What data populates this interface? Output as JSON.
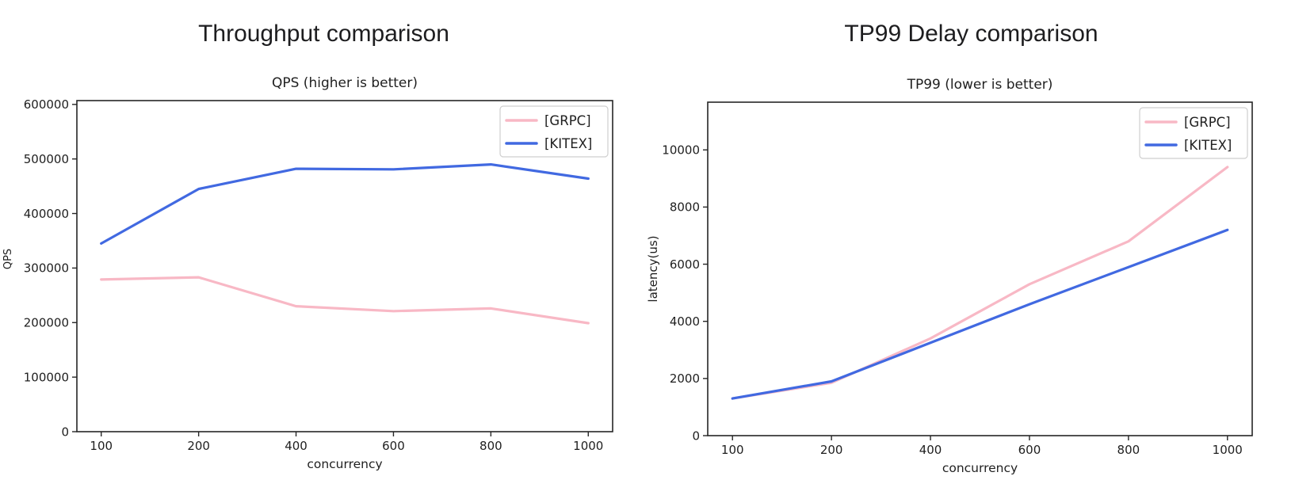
{
  "chart_data": [
    {
      "type": "line",
      "suptitle": "Throughput comparison",
      "title": "QPS (higher is better)",
      "xlabel": "concurrency",
      "ylabel": "QPS",
      "categories": [
        100,
        200,
        400,
        600,
        800,
        1000
      ],
      "xtick_labels": [
        "100",
        "200",
        "400",
        "600",
        "800",
        "1000"
      ],
      "yticks": [
        0,
        100000,
        200000,
        300000,
        400000,
        500000,
        600000
      ],
      "ytick_labels": [
        "0",
        "100000",
        "200000",
        "300000",
        "400000",
        "500000",
        "600000"
      ],
      "ylim": [
        0,
        607000
      ],
      "grid": false,
      "legend_position": "upper right",
      "series": [
        {
          "name": "[GRPC]",
          "color": "#F8B8C5",
          "values": [
            279000,
            283000,
            230000,
            221000,
            226000,
            199000
          ]
        },
        {
          "name": "[KITEX]",
          "color": "#4169E1",
          "values": [
            345000,
            445000,
            482000,
            481000,
            490000,
            464000
          ]
        }
      ]
    },
    {
      "type": "line",
      "suptitle": "TP99 Delay comparison",
      "title": "TP99 (lower is better)",
      "xlabel": "concurrency",
      "ylabel": "latency(us)",
      "categories": [
        100,
        200,
        400,
        600,
        800,
        1000
      ],
      "xtick_labels": [
        "100",
        "200",
        "400",
        "600",
        "800",
        "1000"
      ],
      "yticks": [
        0,
        2000,
        4000,
        6000,
        8000,
        10000
      ],
      "ytick_labels": [
        "0",
        "2000",
        "4000",
        "6000",
        "8000",
        "10000"
      ],
      "ylim": [
        0,
        11670
      ],
      "grid": false,
      "legend_position": "upper right",
      "series": [
        {
          "name": "[GRPC]",
          "color": "#F8B8C5",
          "values": [
            1300,
            1850,
            3400,
            5300,
            6800,
            9400
          ]
        },
        {
          "name": "[KITEX]",
          "color": "#4169E1",
          "values": [
            1300,
            1900,
            3250,
            4600,
            5900,
            7200
          ]
        }
      ]
    }
  ],
  "style": {
    "axis_color": "#262626",
    "text_color": "#1f1f1f",
    "legend_border": "#cfcfcf",
    "background": "#ffffff"
  }
}
